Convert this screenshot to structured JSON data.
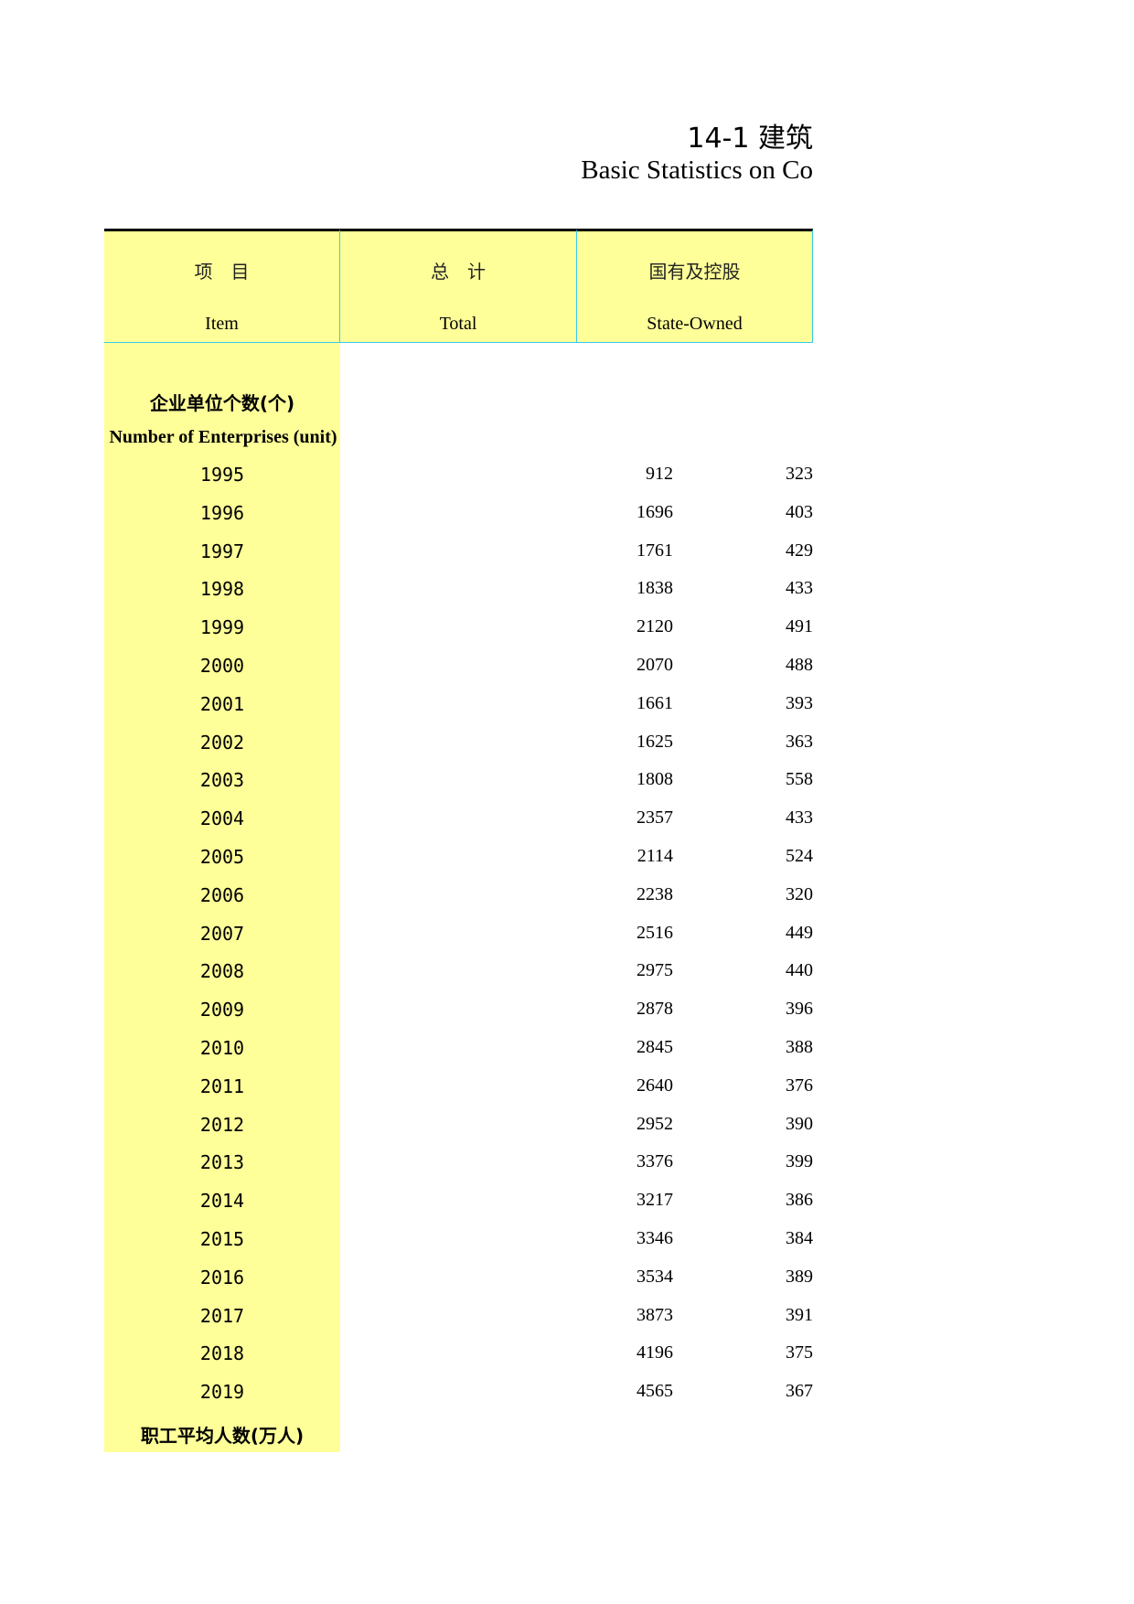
{
  "title": "14-1  建筑",
  "subtitle": "Basic Statistics on Co",
  "header": {
    "item": {
      "cn": "项　目",
      "en": "Item"
    },
    "total": {
      "cn": "总　计",
      "en": "Total"
    },
    "state_owned": {
      "cn": "国有及控股",
      "en": "State-Owned"
    }
  },
  "colors": {
    "header_bg": "#ffff99",
    "grid": "#33ccee"
  },
  "sections": [
    {
      "cn": "企业单位个数(个)",
      "en": "Number of Enterprises (unit)",
      "rows": [
        {
          "year": "1995",
          "total": "912",
          "state_owned": "323"
        },
        {
          "year": "1996",
          "total": "1696",
          "state_owned": "403"
        },
        {
          "year": "1997",
          "total": "1761",
          "state_owned": "429"
        },
        {
          "year": "1998",
          "total": "1838",
          "state_owned": "433"
        },
        {
          "year": "1999",
          "total": "2120",
          "state_owned": "491"
        },
        {
          "year": "2000",
          "total": "2070",
          "state_owned": "488"
        },
        {
          "year": "2001",
          "total": "1661",
          "state_owned": "393"
        },
        {
          "year": "2002",
          "total": "1625",
          "state_owned": "363"
        },
        {
          "year": "2003",
          "total": "1808",
          "state_owned": "558"
        },
        {
          "year": "2004",
          "total": "2357",
          "state_owned": "433"
        },
        {
          "year": "2005",
          "total": "2114",
          "state_owned": "524"
        },
        {
          "year": "2006",
          "total": "2238",
          "state_owned": "320"
        },
        {
          "year": "2007",
          "total": "2516",
          "state_owned": "449"
        },
        {
          "year": "2008",
          "total": "2975",
          "state_owned": "440"
        },
        {
          "year": "2009",
          "total": "2878",
          "state_owned": "396"
        },
        {
          "year": "2010",
          "total": "2845",
          "state_owned": "388"
        },
        {
          "year": "2011",
          "total": "2640",
          "state_owned": "376"
        },
        {
          "year": "2012",
          "total": "2952",
          "state_owned": "390"
        },
        {
          "year": "2013",
          "total": "3376",
          "state_owned": "399"
        },
        {
          "year": "2014",
          "total": "3217",
          "state_owned": "386"
        },
        {
          "year": "2015",
          "total": "3346",
          "state_owned": "384"
        },
        {
          "year": "2016",
          "total": "3534",
          "state_owned": "389"
        },
        {
          "year": "2017",
          "total": "3873",
          "state_owned": "391"
        },
        {
          "year": "2018",
          "total": "4196",
          "state_owned": "375"
        },
        {
          "year": "2019",
          "total": "4565",
          "state_owned": "367"
        }
      ]
    },
    {
      "cn": "职工平均人数(万人)"
    }
  ]
}
